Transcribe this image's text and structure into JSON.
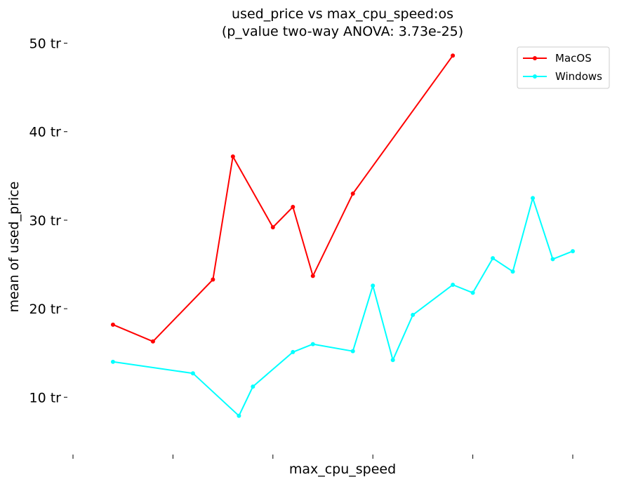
{
  "chart_data": {
    "type": "line",
    "title": "used_price vs max_cpu_speed:os",
    "subtitle": "(p_value two-way ANOVA: 3.73e-25)",
    "xlabel": "max_cpu_speed",
    "ylabel": "mean of used_price",
    "x_tick_count": 6,
    "yticks": [
      {
        "value": 10,
        "label": "10 tr"
      },
      {
        "value": 20,
        "label": "20 tr"
      },
      {
        "value": 30,
        "label": "30 tr"
      },
      {
        "value": 40,
        "label": "40 tr"
      },
      {
        "value": 50,
        "label": "50 tr"
      }
    ],
    "ylim": [
      4,
      52.5
    ],
    "xlim": [
      0,
      25
    ],
    "grid": false,
    "legend_position": "top-right",
    "series": [
      {
        "name": "MacOS",
        "color": "#ff0000",
        "x": [
          2,
          4,
          7,
          8,
          10,
          11,
          12,
          14,
          19
        ],
        "values": [
          18.2,
          16.3,
          23.3,
          37.2,
          29.2,
          31.5,
          23.7,
          33.0,
          48.6
        ]
      },
      {
        "name": "Windows",
        "color": "#00ffff",
        "x": [
          2,
          6,
          8.3,
          9,
          11,
          12,
          14,
          15,
          16,
          17,
          19,
          20,
          21,
          22,
          23,
          24,
          25
        ],
        "values": [
          14.0,
          12.7,
          7.9,
          11.2,
          15.1,
          16.0,
          15.2,
          22.6,
          14.2,
          19.3,
          22.7,
          21.8,
          25.7,
          24.2,
          32.5,
          25.6,
          26.5
        ]
      }
    ]
  }
}
